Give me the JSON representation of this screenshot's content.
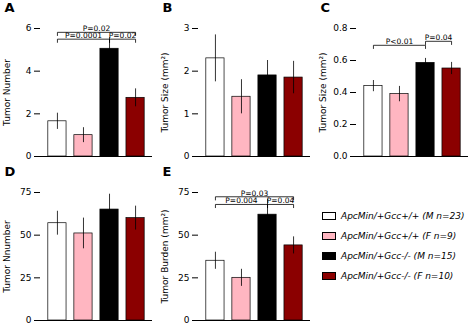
{
  "chart_data": [
    {
      "type": "bar",
      "title": "A",
      "ylabel": "Tumor Number",
      "categories": [
        "ApcMin/+Gcc+/+ (M n=23)",
        "ApcMin/+Gcc+/+ (F n=9)",
        "ApcMin/+Gcc-/- (M n=15)",
        "ApcMin/+Gcc-/- (F n=10)"
      ],
      "values": [
        1.65,
        1.0,
        5.05,
        2.75
      ],
      "errors": [
        0.38,
        0.35,
        0.52,
        0.42
      ],
      "colors": [
        "white",
        "#FFB6C1",
        "black",
        "#8B0000"
      ],
      "ylim": [
        0,
        6
      ],
      "yticks": [
        0,
        2,
        4,
        6
      ],
      "tick_labels": "y",
      "annotations": [
        {
          "x1": "ApcMin/+Gcc+/+ (M n=23)",
          "x2": "ApcMin/+Gcc-/- (M n=15)",
          "y": 5.5,
          "text": "P=0.0001"
        },
        {
          "x1": "ApcMin/+Gcc-/- (M n=15)",
          "x2": "ApcMin/+Gcc-/- (F n=10)",
          "y": 5.5,
          "text": "P=0.02"
        },
        {
          "x1": "ApcMin/+Gcc+/+ (M n=23)",
          "x2": "ApcMin/+Gcc-/- (F n=10)",
          "y": 5.82,
          "text": "P=0.02"
        }
      ]
    },
    {
      "type": "bar",
      "title": "B",
      "ylabel": "Tumor Size (mm²)",
      "categories": [
        "ApcMin/+Gcc+/+ (M n=23)",
        "ApcMin/+Gcc+/+ (F n=9)",
        "ApcMin/+Gcc-/- (M n=15)",
        "ApcMin/+Gcc-/- (F n=10)"
      ],
      "values": [
        2.3,
        1.4,
        1.9,
        1.85
      ],
      "errors": [
        0.55,
        0.4,
        0.35,
        0.38
      ],
      "colors": [
        "white",
        "#FFB6C1",
        "black",
        "#8B0000"
      ],
      "ylim": [
        0,
        3
      ],
      "yticks": [
        0,
        1,
        2,
        3
      ],
      "tick_labels": "y",
      "annotations": []
    },
    {
      "type": "bar",
      "title": "C",
      "ylabel": "Tumor Size (mm²)",
      "categories": [
        "ApcMin/+Gcc+/+ (M n=23)",
        "ApcMin/+Gcc+/+ (F n=9)",
        "ApcMin/+Gcc-/- (M n=15)",
        "ApcMin/+Gcc-/- (F n=10)"
      ],
      "values": [
        0.44,
        0.39,
        0.585,
        0.55
      ],
      "errors": [
        0.035,
        0.048,
        0.028,
        0.038
      ],
      "colors": [
        "white",
        "#FFB6C1",
        "black",
        "#8B0000"
      ],
      "ylim": [
        0.0,
        0.8
      ],
      "yticks": [
        {
          "value": 0.0,
          "label": "0.0"
        },
        0.2,
        0.4,
        0.6,
        0.8
      ],
      "tick_labels": "y",
      "annotations": [
        {
          "x1": "ApcMin/+Gcc+/+ (M n=23)",
          "x2": "ApcMin/+Gcc-/- (M n=15)",
          "y": 0.695,
          "text": "P<0.01"
        },
        {
          "x1": "ApcMin/+Gcc-/- (M n=15)",
          "x2": "ApcMin/+Gcc-/- (F n=10)",
          "y": 0.72,
          "text": "P=0.04"
        }
      ]
    },
    {
      "type": "bar",
      "title": "D",
      "ylabel": "Tumor Nnumber",
      "categories": [
        "ApcMin/+Gcc+/+ (M n=23)",
        "ApcMin/+Gcc+/+ (F n=9)",
        "ApcMin/+Gcc-/- (M n=15)",
        "ApcMin/+Gcc-/- (F n=10)"
      ],
      "values": [
        57,
        51,
        65,
        60
      ],
      "errors": [
        7,
        9,
        9,
        7
      ],
      "colors": [
        "white",
        "#FFB6C1",
        "black",
        "#8B0000"
      ],
      "ylim": [
        0,
        75
      ],
      "yticks": [
        0,
        25,
        50,
        75
      ],
      "tick_labels": "y",
      "annotations": []
    },
    {
      "type": "bar",
      "title": "E",
      "ylabel": "Tumor Burden (mm²)",
      "categories": [
        "ApcMin/+Gcc+/+ (M n=23)",
        "ApcMin/+Gcc+/+ (F n=9)",
        "ApcMin/+Gcc-/- (M n=15)",
        "ApcMin/+Gcc-/- (F n=10)"
      ],
      "values": [
        35,
        25,
        62,
        44
      ],
      "errors": [
        5,
        5,
        9,
        5
      ],
      "colors": [
        "white",
        "#FFB6C1",
        "black",
        "#8B0000"
      ],
      "ylim": [
        0,
        75
      ],
      "yticks": [
        0,
        25,
        50,
        75
      ],
      "tick_labels": "y",
      "legend": "right",
      "annotations": [
        {
          "x1": "ApcMin/+Gcc+/+ (M n=23)",
          "x2": "ApcMin/+Gcc-/- (M n=15)",
          "y": 68,
          "text": "P=0.004"
        },
        {
          "x1": "ApcMin/+Gcc-/- (M n=15)",
          "x2": "ApcMin/+Gcc-/- (F n=10)",
          "y": 68,
          "text": "P=0.04"
        },
        {
          "x1": "ApcMin/+Gcc+/+ (M n=23)",
          "x2": "ApcMin/+Gcc-/- (F n=10)",
          "y": 72.5,
          "text": "P=0.03"
        }
      ]
    }
  ]
}
